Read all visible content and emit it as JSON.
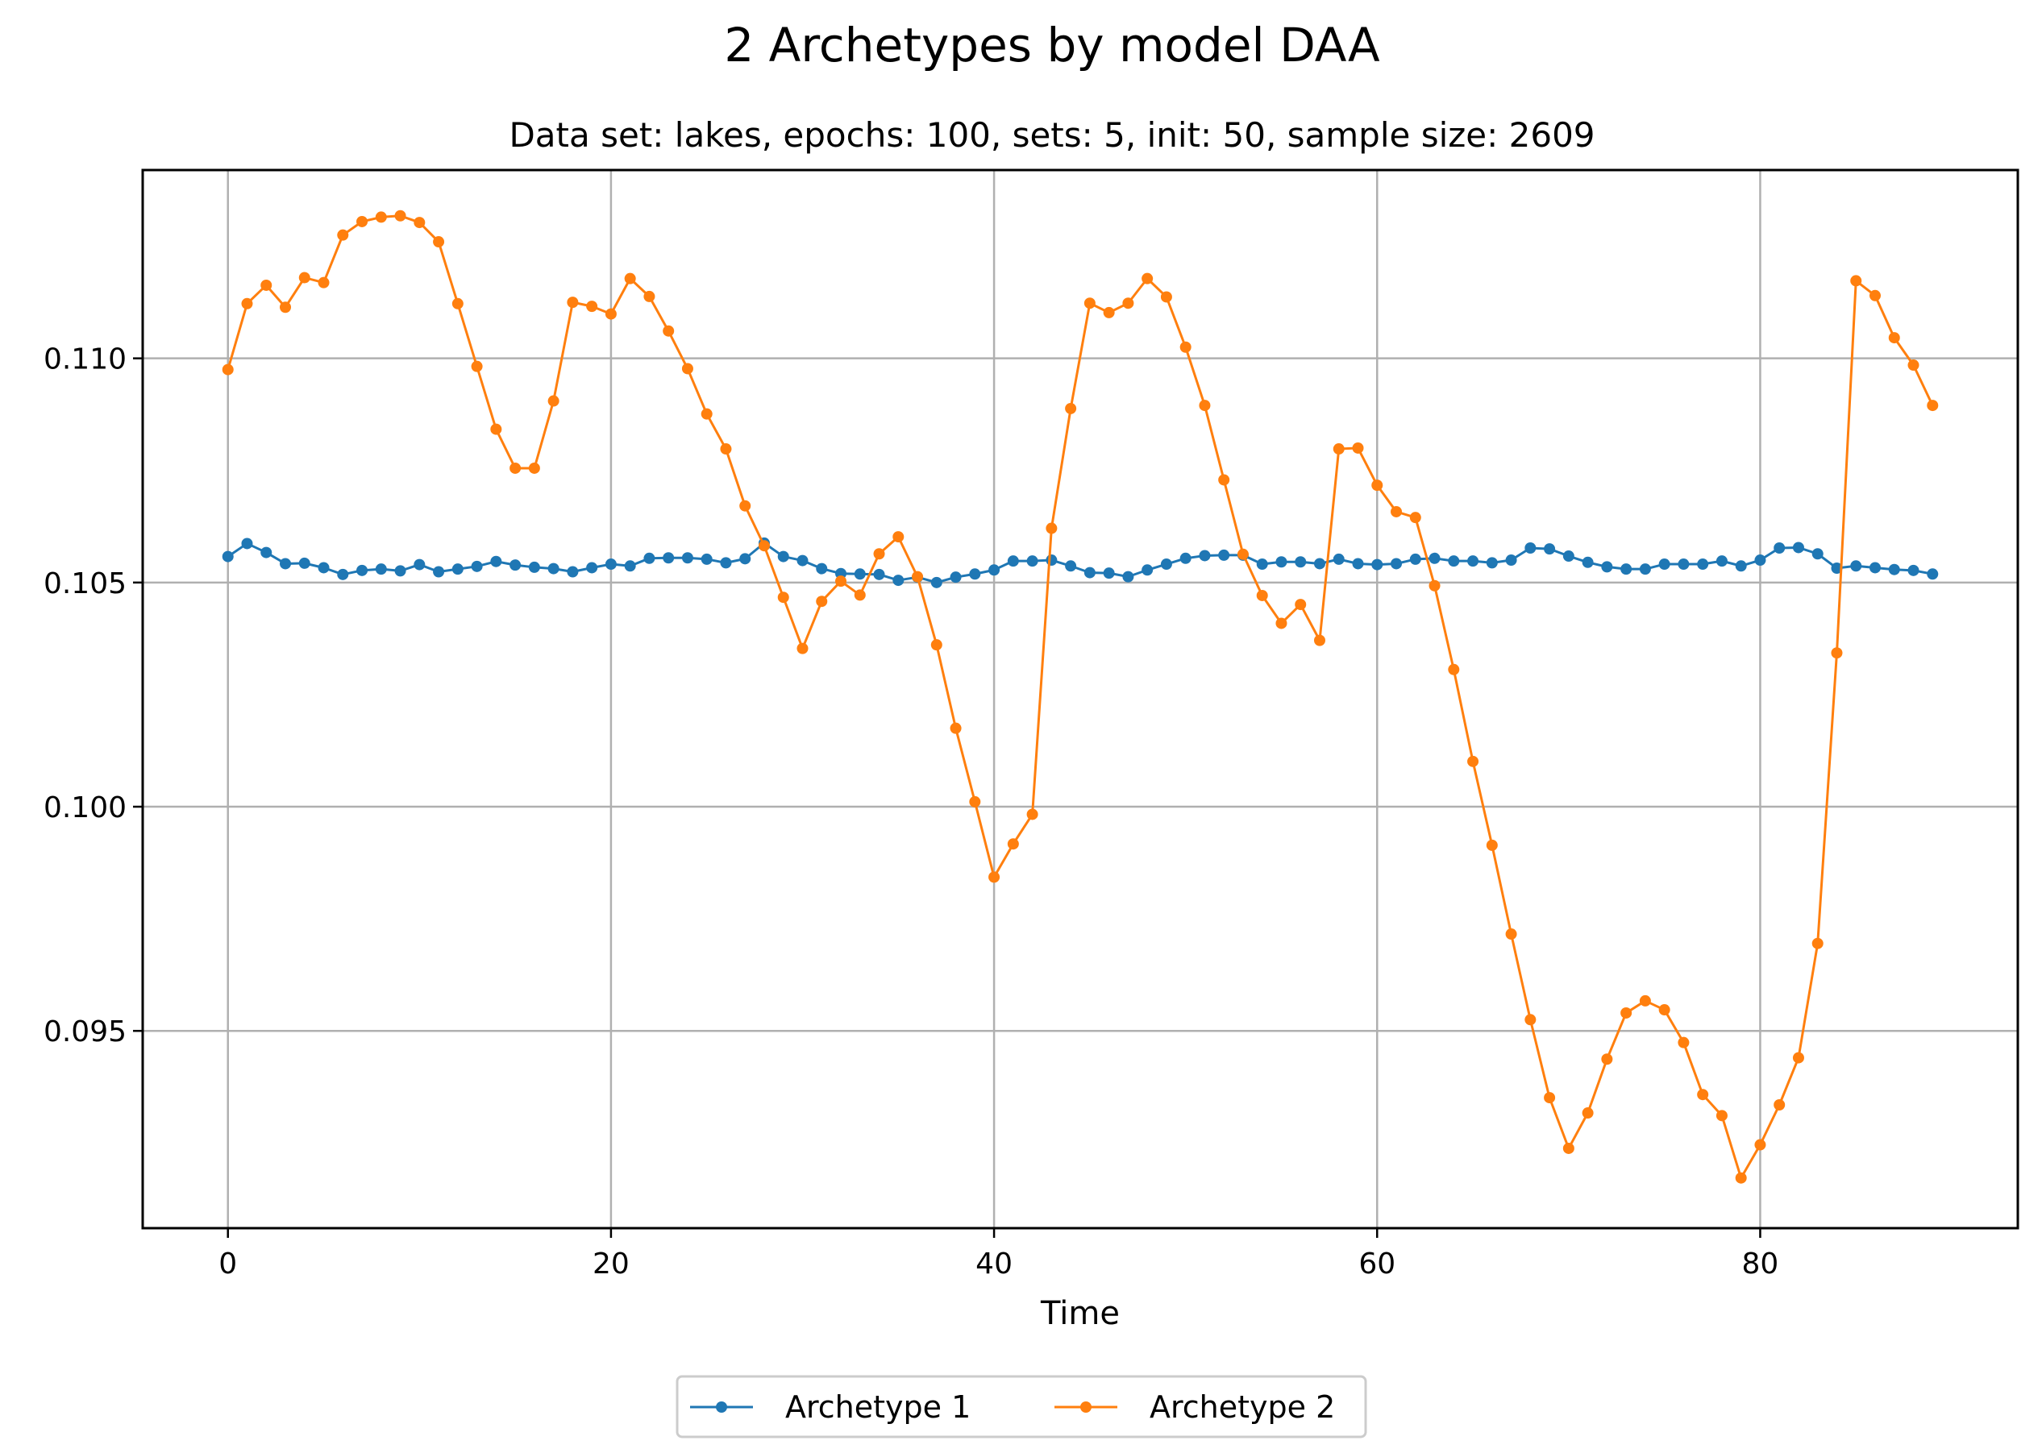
{
  "chart_data": {
    "type": "line",
    "title": "2 Archetypes by model DAA",
    "subtitle": "Data set: lakes, epochs: 100, sets: 5, init: 50, sample size: 2609",
    "xlabel": "Time",
    "ylabel": "",
    "xlim": [
      -4.45,
      93.45
    ],
    "ylim": [
      0.0906,
      0.1142
    ],
    "xticks": [
      0,
      20,
      40,
      60,
      80
    ],
    "xtick_labels": [
      "0",
      "20",
      "40",
      "60",
      "80"
    ],
    "yticks": [
      0.095,
      0.1,
      0.105,
      0.11
    ],
    "ytick_labels": [
      "0.095",
      "0.100",
      "0.105",
      "0.110"
    ],
    "grid": true,
    "legend_position": "bottom-center, below plot",
    "x": [
      0,
      1,
      2,
      3,
      4,
      5,
      6,
      7,
      8,
      9,
      10,
      11,
      12,
      13,
      14,
      15,
      16,
      17,
      18,
      19,
      20,
      21,
      22,
      23,
      24,
      25,
      26,
      27,
      28,
      29,
      30,
      31,
      32,
      33,
      34,
      35,
      36,
      37,
      38,
      39,
      40,
      41,
      42,
      43,
      44,
      45,
      46,
      47,
      48,
      49,
      50,
      51,
      52,
      53,
      54,
      55,
      56,
      57,
      58,
      59,
      60,
      61,
      62,
      63,
      64,
      65,
      66,
      67,
      68,
      69,
      70,
      71,
      72,
      73,
      74,
      75,
      76,
      77,
      78,
      79,
      80,
      81,
      82,
      83,
      84,
      85,
      86,
      87,
      88,
      89
    ],
    "series": [
      {
        "name": "Archetype 1",
        "color": "#1f77b4",
        "values": [
          0.10558,
          0.10587,
          0.10567,
          0.10542,
          0.10543,
          0.10533,
          0.10518,
          0.10527,
          0.1053,
          0.10526,
          0.1054,
          0.10524,
          0.1053,
          0.10536,
          0.10547,
          0.10539,
          0.10534,
          0.10531,
          0.10524,
          0.10533,
          0.10541,
          0.10537,
          0.10554,
          0.10555,
          0.10555,
          0.10552,
          0.10544,
          0.10553,
          0.10588,
          0.10558,
          0.10549,
          0.10531,
          0.1052,
          0.10519,
          0.10518,
          0.10505,
          0.10512,
          0.105,
          0.10512,
          0.10519,
          0.10528,
          0.10548,
          0.10548,
          0.1055,
          0.10537,
          0.10522,
          0.10521,
          0.10513,
          0.10528,
          0.10541,
          0.10554,
          0.1056,
          0.10561,
          0.10561,
          0.10541,
          0.10546,
          0.10546,
          0.10542,
          0.10552,
          0.10542,
          0.1054,
          0.10542,
          0.10552,
          0.10554,
          0.10548,
          0.10548,
          0.10544,
          0.1055,
          0.10577,
          0.10575,
          0.10559,
          0.10545,
          0.10535,
          0.1053,
          0.1053,
          0.10541,
          0.10541,
          0.10541,
          0.10548,
          0.10537,
          0.1055,
          0.10577,
          0.10578,
          0.10564,
          0.10532,
          0.10537,
          0.10533,
          0.10529,
          0.10527,
          0.10519
        ]
      },
      {
        "name": "Archetype 2",
        "color": "#ff7f0e",
        "values": [
          0.10975,
          0.11122,
          0.11163,
          0.11114,
          0.1118,
          0.11169,
          0.11275,
          0.11305,
          0.11315,
          0.11318,
          0.11303,
          0.1126,
          0.11122,
          0.10982,
          0.10842,
          0.10755,
          0.10755,
          0.10905,
          0.11125,
          0.11116,
          0.11099,
          0.11178,
          0.11138,
          0.11061,
          0.10977,
          0.10876,
          0.10798,
          0.10671,
          0.10582,
          0.10467,
          0.10353,
          0.10458,
          0.10503,
          0.10472,
          0.10564,
          0.10602,
          0.10513,
          0.10361,
          0.10175,
          0.10011,
          0.09843,
          0.09917,
          0.09983,
          0.10621,
          0.10888,
          0.11123,
          0.11102,
          0.11123,
          0.11178,
          0.11137,
          0.11025,
          0.10895,
          0.10729,
          0.10563,
          0.10471,
          0.10409,
          0.10451,
          0.10371,
          0.10798,
          0.108,
          0.10717,
          0.10658,
          0.10645,
          0.10493,
          0.10306,
          0.10101,
          0.09914,
          0.09716,
          0.09525,
          0.09351,
          0.09238,
          0.09317,
          0.09437,
          0.0954,
          0.09567,
          0.09547,
          0.09474,
          0.09358,
          0.09311,
          0.09172,
          0.09246,
          0.09335,
          0.0944,
          0.09695,
          0.10343,
          0.11173,
          0.1114,
          0.11046,
          0.10985,
          0.10895
        ]
      }
    ]
  }
}
